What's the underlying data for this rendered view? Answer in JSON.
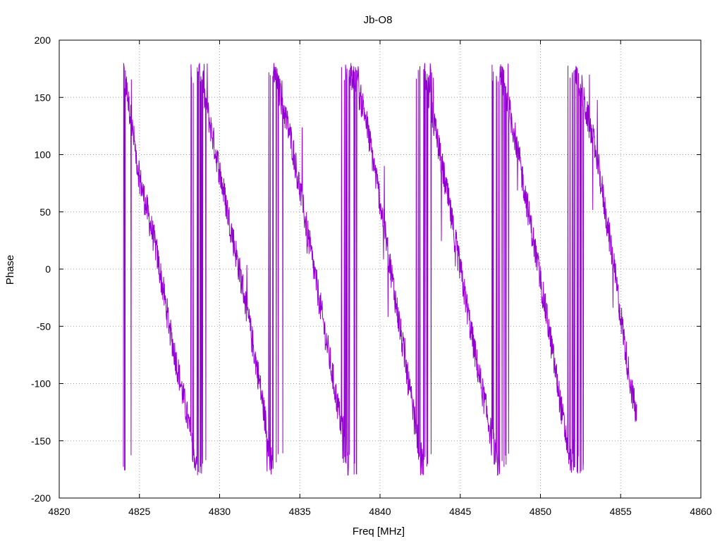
{
  "chart_data": {
    "type": "line",
    "title": "Jb-O8",
    "xlabel": "Freq [MHz]",
    "ylabel": "Phase",
    "xlim": [
      4820,
      4860
    ],
    "ylim": [
      -200,
      200
    ],
    "xticks": [
      4820,
      4825,
      4830,
      4835,
      4840,
      4845,
      4850,
      4855,
      4860
    ],
    "yticks": [
      -200,
      -150,
      -100,
      -50,
      0,
      50,
      100,
      150,
      200
    ],
    "grid": true,
    "series": [
      {
        "color": "#9400d3",
        "x_range": [
          4824.0,
          4856.0
        ],
        "wrap_period_mhz": 4.7,
        "wrap_starts_mhz": [
          4824.0,
          4828.7,
          4833.4,
          4838.1,
          4842.8,
          4847.5,
          4852.2
        ],
        "points": [
          {
            "x": 4824.0,
            "y": 175
          },
          {
            "x": 4825.0,
            "y": 80
          },
          {
            "x": 4826.0,
            "y": 20
          },
          {
            "x": 4827.0,
            "y": -60
          },
          {
            "x": 4828.0,
            "y": -130
          },
          {
            "x": 4828.6,
            "y": -175
          },
          {
            "x": 4828.7,
            "y": 175
          },
          {
            "x": 4829.5,
            "y": 120
          },
          {
            "x": 4830.5,
            "y": 50
          },
          {
            "x": 4831.5,
            "y": -20
          },
          {
            "x": 4832.5,
            "y": -100
          },
          {
            "x": 4833.3,
            "y": -175
          },
          {
            "x": 4833.4,
            "y": 175
          },
          {
            "x": 4834.5,
            "y": 110
          },
          {
            "x": 4835.5,
            "y": 30
          },
          {
            "x": 4836.5,
            "y": -50
          },
          {
            "x": 4837.5,
            "y": -130
          },
          {
            "x": 4838.0,
            "y": -170
          },
          {
            "x": 4838.1,
            "y": 175
          },
          {
            "x": 4839.0,
            "y": 140
          },
          {
            "x": 4840.0,
            "y": 60
          },
          {
            "x": 4841.0,
            "y": -30
          },
          {
            "x": 4842.0,
            "y": -120
          },
          {
            "x": 4842.7,
            "y": -175
          },
          {
            "x": 4842.8,
            "y": 170
          },
          {
            "x": 4844.0,
            "y": 80
          },
          {
            "x": 4845.0,
            "y": 0
          },
          {
            "x": 4846.0,
            "y": -80
          },
          {
            "x": 4847.0,
            "y": -150
          },
          {
            "x": 4847.4,
            "y": -178
          },
          {
            "x": 4847.5,
            "y": 175
          },
          {
            "x": 4848.5,
            "y": 110
          },
          {
            "x": 4849.5,
            "y": 30
          },
          {
            "x": 4850.5,
            "y": -50
          },
          {
            "x": 4851.5,
            "y": -140
          },
          {
            "x": 4852.1,
            "y": -178
          },
          {
            "x": 4852.2,
            "y": 175
          },
          {
            "x": 4853.5,
            "y": 100
          },
          {
            "x": 4854.5,
            "y": 10
          },
          {
            "x": 4855.5,
            "y": -90
          },
          {
            "x": 4856.0,
            "y": -130
          }
        ]
      }
    ]
  }
}
